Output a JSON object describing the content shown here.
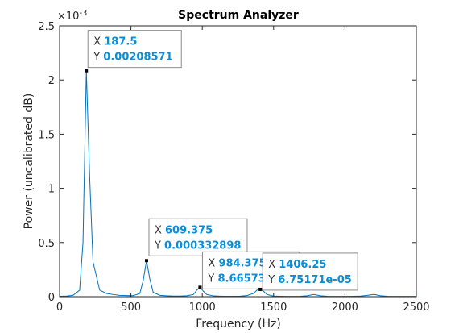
{
  "chart_data": {
    "type": "line",
    "title": "Spectrum Analyzer",
    "xlabel": "Frequency (Hz)",
    "ylabel": "Power (uncalibrated dB)",
    "xlim": [
      0,
      2500
    ],
    "ylim": [
      0,
      0.0025
    ],
    "x_ticks": [
      "0",
      "500",
      "1000",
      "1500",
      "2000",
      "2500"
    ],
    "y_ticks": [
      "0",
      "0.5",
      "1",
      "1.5",
      "2",
      "2.5"
    ],
    "y_exponent_base": "×10",
    "y_exponent_power": "-3",
    "grid": false,
    "line_color": "#0072bd",
    "series": [
      {
        "x": [
          0,
          46.875,
          93.75,
          140.625,
          164.0625,
          187.5,
          210.9375,
          234.375,
          281.25,
          328.125,
          375,
          421.875,
          468.75,
          515.625,
          562.5,
          585.9375,
          609.375,
          632.8125,
          656.25,
          703.125,
          750,
          796.875,
          843.75,
          890.625,
          937.5,
          960.9375,
          984.375,
          1007.8125,
          1031.25,
          1078.125,
          1125,
          1171.875,
          1218.75,
          1265.625,
          1312.5,
          1359.375,
          1382.8125,
          1406.25,
          1429.6875,
          1453.125,
          1500,
          1546.875,
          1593.75,
          1640.625,
          1687.5,
          1734.375,
          1781.25,
          1828.125,
          1875,
          1921.875,
          1968.75,
          2015.625,
          2062.5,
          2109.375,
          2156.25,
          2203.125,
          2250,
          2296.875,
          2343.75,
          2390.625,
          2437.5,
          2500
        ],
        "values": [
          4e-06,
          6e-06,
          1.2e-05,
          6e-05,
          0.0005,
          0.00208571,
          0.0011,
          0.00032,
          6e-05,
          3e-05,
          2e-05,
          1.2e-05,
          1e-05,
          9e-06,
          3e-05,
          0.00015,
          0.000332898,
          0.00016,
          4e-05,
          1.2e-05,
          8e-06,
          6e-06,
          6e-06,
          8e-06,
          2e-05,
          6e-05,
          8.66573e-05,
          5e-05,
          2e-05,
          7e-06,
          5e-06,
          4e-06,
          4e-06,
          5e-06,
          1e-05,
          3e-05,
          6e-05,
          6.75171e-05,
          5e-05,
          2e-05,
          6e-06,
          4e-06,
          3e-06,
          3e-06,
          4e-06,
          8e-06,
          2e-05,
          8e-06,
          4e-06,
          3e-06,
          3e-06,
          3e-06,
          4e-06,
          6e-06,
          1.2e-05,
          2e-05,
          8e-06,
          4e-06,
          3e-06,
          3e-06,
          3e-06,
          3e-06
        ]
      }
    ],
    "datatips": [
      {
        "x_label": "X",
        "x_value": "187.5",
        "y_label": "Y",
        "y_value": "0.00208571",
        "x": 187.5,
        "y": 0.00208571
      },
      {
        "x_label": "X",
        "x_value": "609.375",
        "y_label": "Y",
        "y_value": "0.000332898",
        "x": 609.375,
        "y": 0.000332898
      },
      {
        "x_label": "X",
        "x_value": "984.375",
        "y_label": "Y",
        "y_value": "8.66573e-05",
        "x": 984.375,
        "y": 8.66573e-05
      },
      {
        "x_label": "X",
        "x_value": "1406.25",
        "y_label": "Y",
        "y_value": "6.75171e-05",
        "x": 1406.25,
        "y": 6.75171e-05
      }
    ]
  }
}
